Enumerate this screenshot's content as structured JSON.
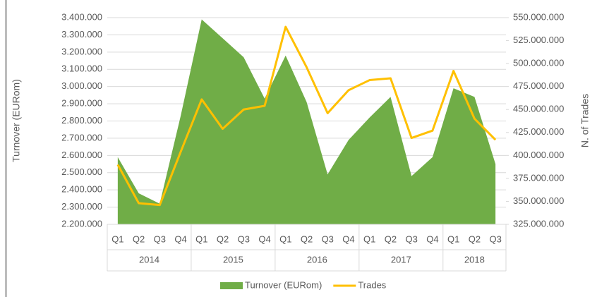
{
  "chart_data": {
    "type": "combo",
    "y_label": "Turnover (EURom)",
    "y2_label": "N. of Trades",
    "groups": [
      {
        "name": "2014",
        "categories": [
          "Q1",
          "Q2",
          "Q3",
          "Q4"
        ]
      },
      {
        "name": "2015",
        "categories": [
          "Q1",
          "Q2",
          "Q3",
          "Q4"
        ]
      },
      {
        "name": "2016",
        "categories": [
          "Q1",
          "Q2",
          "Q3",
          "Q4"
        ]
      },
      {
        "name": "2017",
        "categories": [
          "Q1",
          "Q2",
          "Q3",
          "Q4"
        ]
      },
      {
        "name": "2018",
        "categories": [
          "Q1",
          "Q2",
          "Q3"
        ]
      }
    ],
    "series": [
      {
        "name": "Turnover (EURom)",
        "type": "area",
        "axis": "y",
        "color": "#70ad47",
        "values": [
          2590000,
          2380000,
          2320000,
          2830000,
          3390000,
          3280000,
          3170000,
          2930000,
          3180000,
          2910000,
          2490000,
          2690000,
          2820000,
          2940000,
          2480000,
          2590000,
          2990000,
          2940000,
          2550000
        ]
      },
      {
        "name": "Trades",
        "type": "line",
        "axis": "y2",
        "color": "#ffc000",
        "values": [
          390000000,
          348000000,
          346000000,
          404000000,
          461000000,
          429000000,
          450000000,
          454000000,
          540000000,
          496000000,
          446000000,
          471000000,
          482000000,
          484000000,
          419000000,
          427000000,
          492000000,
          440000000,
          417000000
        ]
      }
    ],
    "ylim": [
      2200000,
      3400000
    ],
    "yticks": [
      {
        "value": 2200000,
        "label": "2.200.000"
      },
      {
        "value": 2300000,
        "label": "2.300.000"
      },
      {
        "value": 2400000,
        "label": "2.400.000"
      },
      {
        "value": 2500000,
        "label": "2.500.000"
      },
      {
        "value": 2600000,
        "label": "2.600.000"
      },
      {
        "value": 2700000,
        "label": "2.700.000"
      },
      {
        "value": 2800000,
        "label": "2.800.000"
      },
      {
        "value": 2900000,
        "label": "2.900.000"
      },
      {
        "value": 3000000,
        "label": "3.000.000"
      },
      {
        "value": 3100000,
        "label": "3.100.000"
      },
      {
        "value": 3200000,
        "label": "3.200.000"
      },
      {
        "value": 3300000,
        "label": "3.300.000"
      },
      {
        "value": 3400000,
        "label": "3.400.000"
      }
    ],
    "y2lim": [
      325000000,
      550000000
    ],
    "y2ticks": [
      {
        "value": 325000000,
        "label": "325.000.000"
      },
      {
        "value": 350000000,
        "label": "350.000.000"
      },
      {
        "value": 375000000,
        "label": "375.000.000"
      },
      {
        "value": 400000000,
        "label": "400.000.000"
      },
      {
        "value": 425000000,
        "label": "425.000.000"
      },
      {
        "value": 450000000,
        "label": "450.000.000"
      },
      {
        "value": 475000000,
        "label": "475.000.000"
      },
      {
        "value": 500000000,
        "label": "500.000.000"
      },
      {
        "value": 525000000,
        "label": "525.000.000"
      },
      {
        "value": 550000000,
        "label": "550.000.000"
      }
    ],
    "grid": true,
    "legend": "bottom"
  }
}
